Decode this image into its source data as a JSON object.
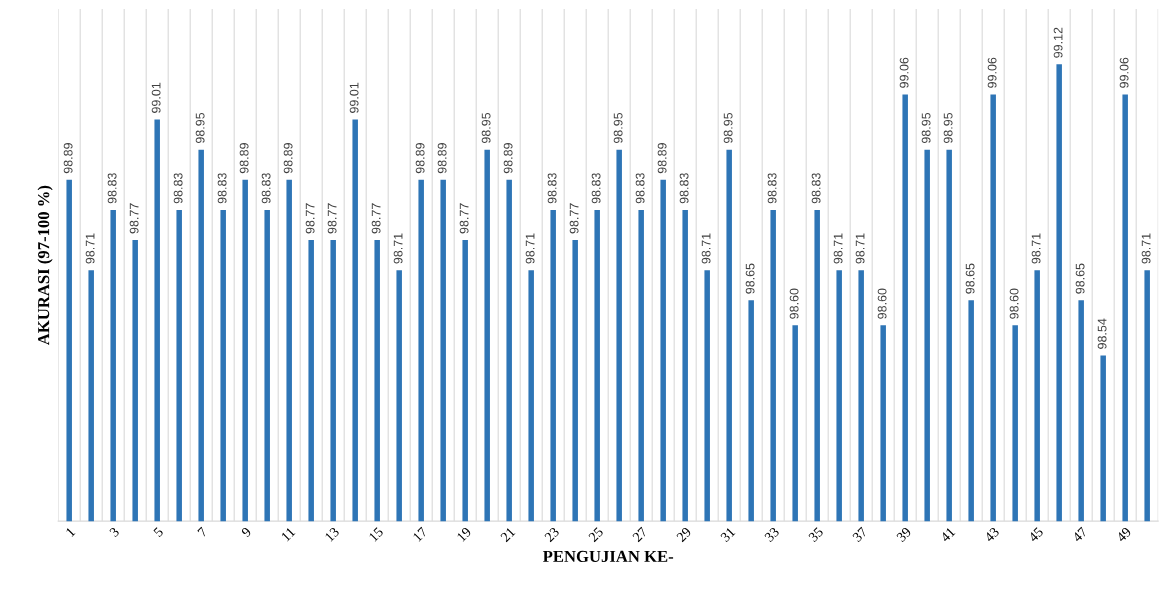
{
  "chart_data": {
    "type": "bar",
    "xlabel": "PENGUJIAN KE-",
    "ylabel": "AKURASI (97-100 %)",
    "categories": [
      "1",
      null,
      "3",
      null,
      "5",
      null,
      "7",
      null,
      "9",
      null,
      "11",
      null,
      "13",
      null,
      "15",
      null,
      "17",
      null,
      "19",
      null,
      "21",
      null,
      "23",
      null,
      "25",
      null,
      "27",
      null,
      "29",
      null,
      "31",
      null,
      "33",
      null,
      "35",
      null,
      "37",
      null,
      "39",
      null,
      "41",
      null,
      "43",
      null,
      "45",
      null,
      "47",
      null,
      "49",
      null
    ],
    "values": [
      98.89,
      98.71,
      98.83,
      98.77,
      99.01,
      98.83,
      98.95,
      98.83,
      98.89,
      98.83,
      98.89,
      98.77,
      98.77,
      99.01,
      98.77,
      98.71,
      98.89,
      98.89,
      98.77,
      98.95,
      98.89,
      98.71,
      98.83,
      98.77,
      98.83,
      98.95,
      98.83,
      98.89,
      98.83,
      98.71,
      98.95,
      98.65,
      98.83,
      98.6,
      98.83,
      98.71,
      98.71,
      98.6,
      99.06,
      98.95,
      98.95,
      98.65,
      99.06,
      98.6,
      98.71,
      99.12,
      98.65,
      98.54,
      99.06,
      98.71
    ],
    "value_labels": [
      "98.89",
      "98.71",
      "98.83",
      "98.77",
      "99.01",
      "98.83",
      "98.95",
      "98.83",
      "98.89",
      "98.83",
      "98.89",
      "98.77",
      "98.77",
      "99.01",
      "98.77",
      "98.71",
      "98.89",
      "98.89",
      "98.77",
      "98.95",
      "98.89",
      "98.71",
      "98.83",
      "98.77",
      "98.83",
      "98.95",
      "98.83",
      "98.89",
      "98.83",
      "98.71",
      "98.95",
      "98.65",
      "98.83",
      "98.60",
      "98.83",
      "98.71",
      "98.71",
      "98.60",
      "99.06",
      "98.95",
      "98.95",
      "98.65",
      "99.06",
      "98.60",
      "98.71",
      "99.12",
      "98.65",
      "98.54",
      "99.06",
      "98.71"
    ],
    "color": "#2e75b6",
    "ylim": [
      98.21,
      99.23
    ],
    "tick_labels": "x",
    "grid": "x"
  }
}
